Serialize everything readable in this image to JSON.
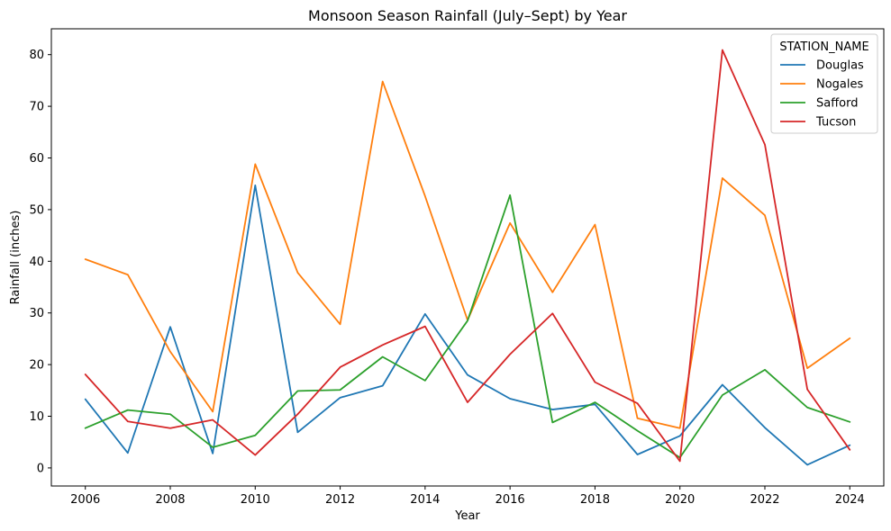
{
  "chart_data": {
    "type": "line",
    "title": "Monsoon Season Rainfall (July–Sept) by Year",
    "xlabel": "Year",
    "ylabel": "Rainfall (inches)",
    "xlim": [
      2005.2,
      2024.8
    ],
    "ylim": [
      -3.5,
      85
    ],
    "xticks": [
      2006,
      2008,
      2010,
      2012,
      2014,
      2016,
      2018,
      2020,
      2022,
      2024
    ],
    "yticks": [
      0,
      10,
      20,
      30,
      40,
      50,
      60,
      70,
      80
    ],
    "grid": false,
    "legend": {
      "title": "STATION_NAME",
      "placement": "top-right"
    },
    "x": [
      2006,
      2007,
      2008,
      2009,
      2010,
      2011,
      2012,
      2013,
      2014,
      2015,
      2016,
      2017,
      2018,
      2019,
      2020,
      2021,
      2022,
      2023,
      2024
    ],
    "series": [
      {
        "name": "Douglas",
        "color": "#1f77b4",
        "values": [
          13.3,
          2.9,
          27.3,
          2.8,
          54.7,
          6.9,
          13.6,
          15.9,
          29.8,
          18.0,
          13.4,
          11.3,
          12.3,
          2.6,
          6.2,
          16.1,
          7.8,
          0.6,
          4.4
        ]
      },
      {
        "name": "Nogales",
        "color": "#ff7f0e",
        "values": [
          40.4,
          37.4,
          22.5,
          10.9,
          58.8,
          37.8,
          27.8,
          74.8,
          52.6,
          28.6,
          47.4,
          34.0,
          47.1,
          9.6,
          7.7,
          56.1,
          48.9,
          19.3,
          25.1
        ]
      },
      {
        "name": "Safford",
        "color": "#2ca02c",
        "values": [
          7.7,
          11.2,
          10.4,
          4.0,
          6.3,
          14.9,
          15.1,
          21.5,
          16.9,
          28.5,
          52.8,
          8.8,
          12.7,
          7.2,
          2.0,
          14.1,
          19.0,
          11.7,
          8.9
        ]
      },
      {
        "name": "Tucson",
        "color": "#d62728",
        "values": [
          18.1,
          9.0,
          7.7,
          9.3,
          2.5,
          10.4,
          19.5,
          23.8,
          27.4,
          12.7,
          22.0,
          29.9,
          16.6,
          12.5,
          1.3,
          80.9,
          62.6,
          15.2,
          3.5
        ]
      }
    ]
  }
}
